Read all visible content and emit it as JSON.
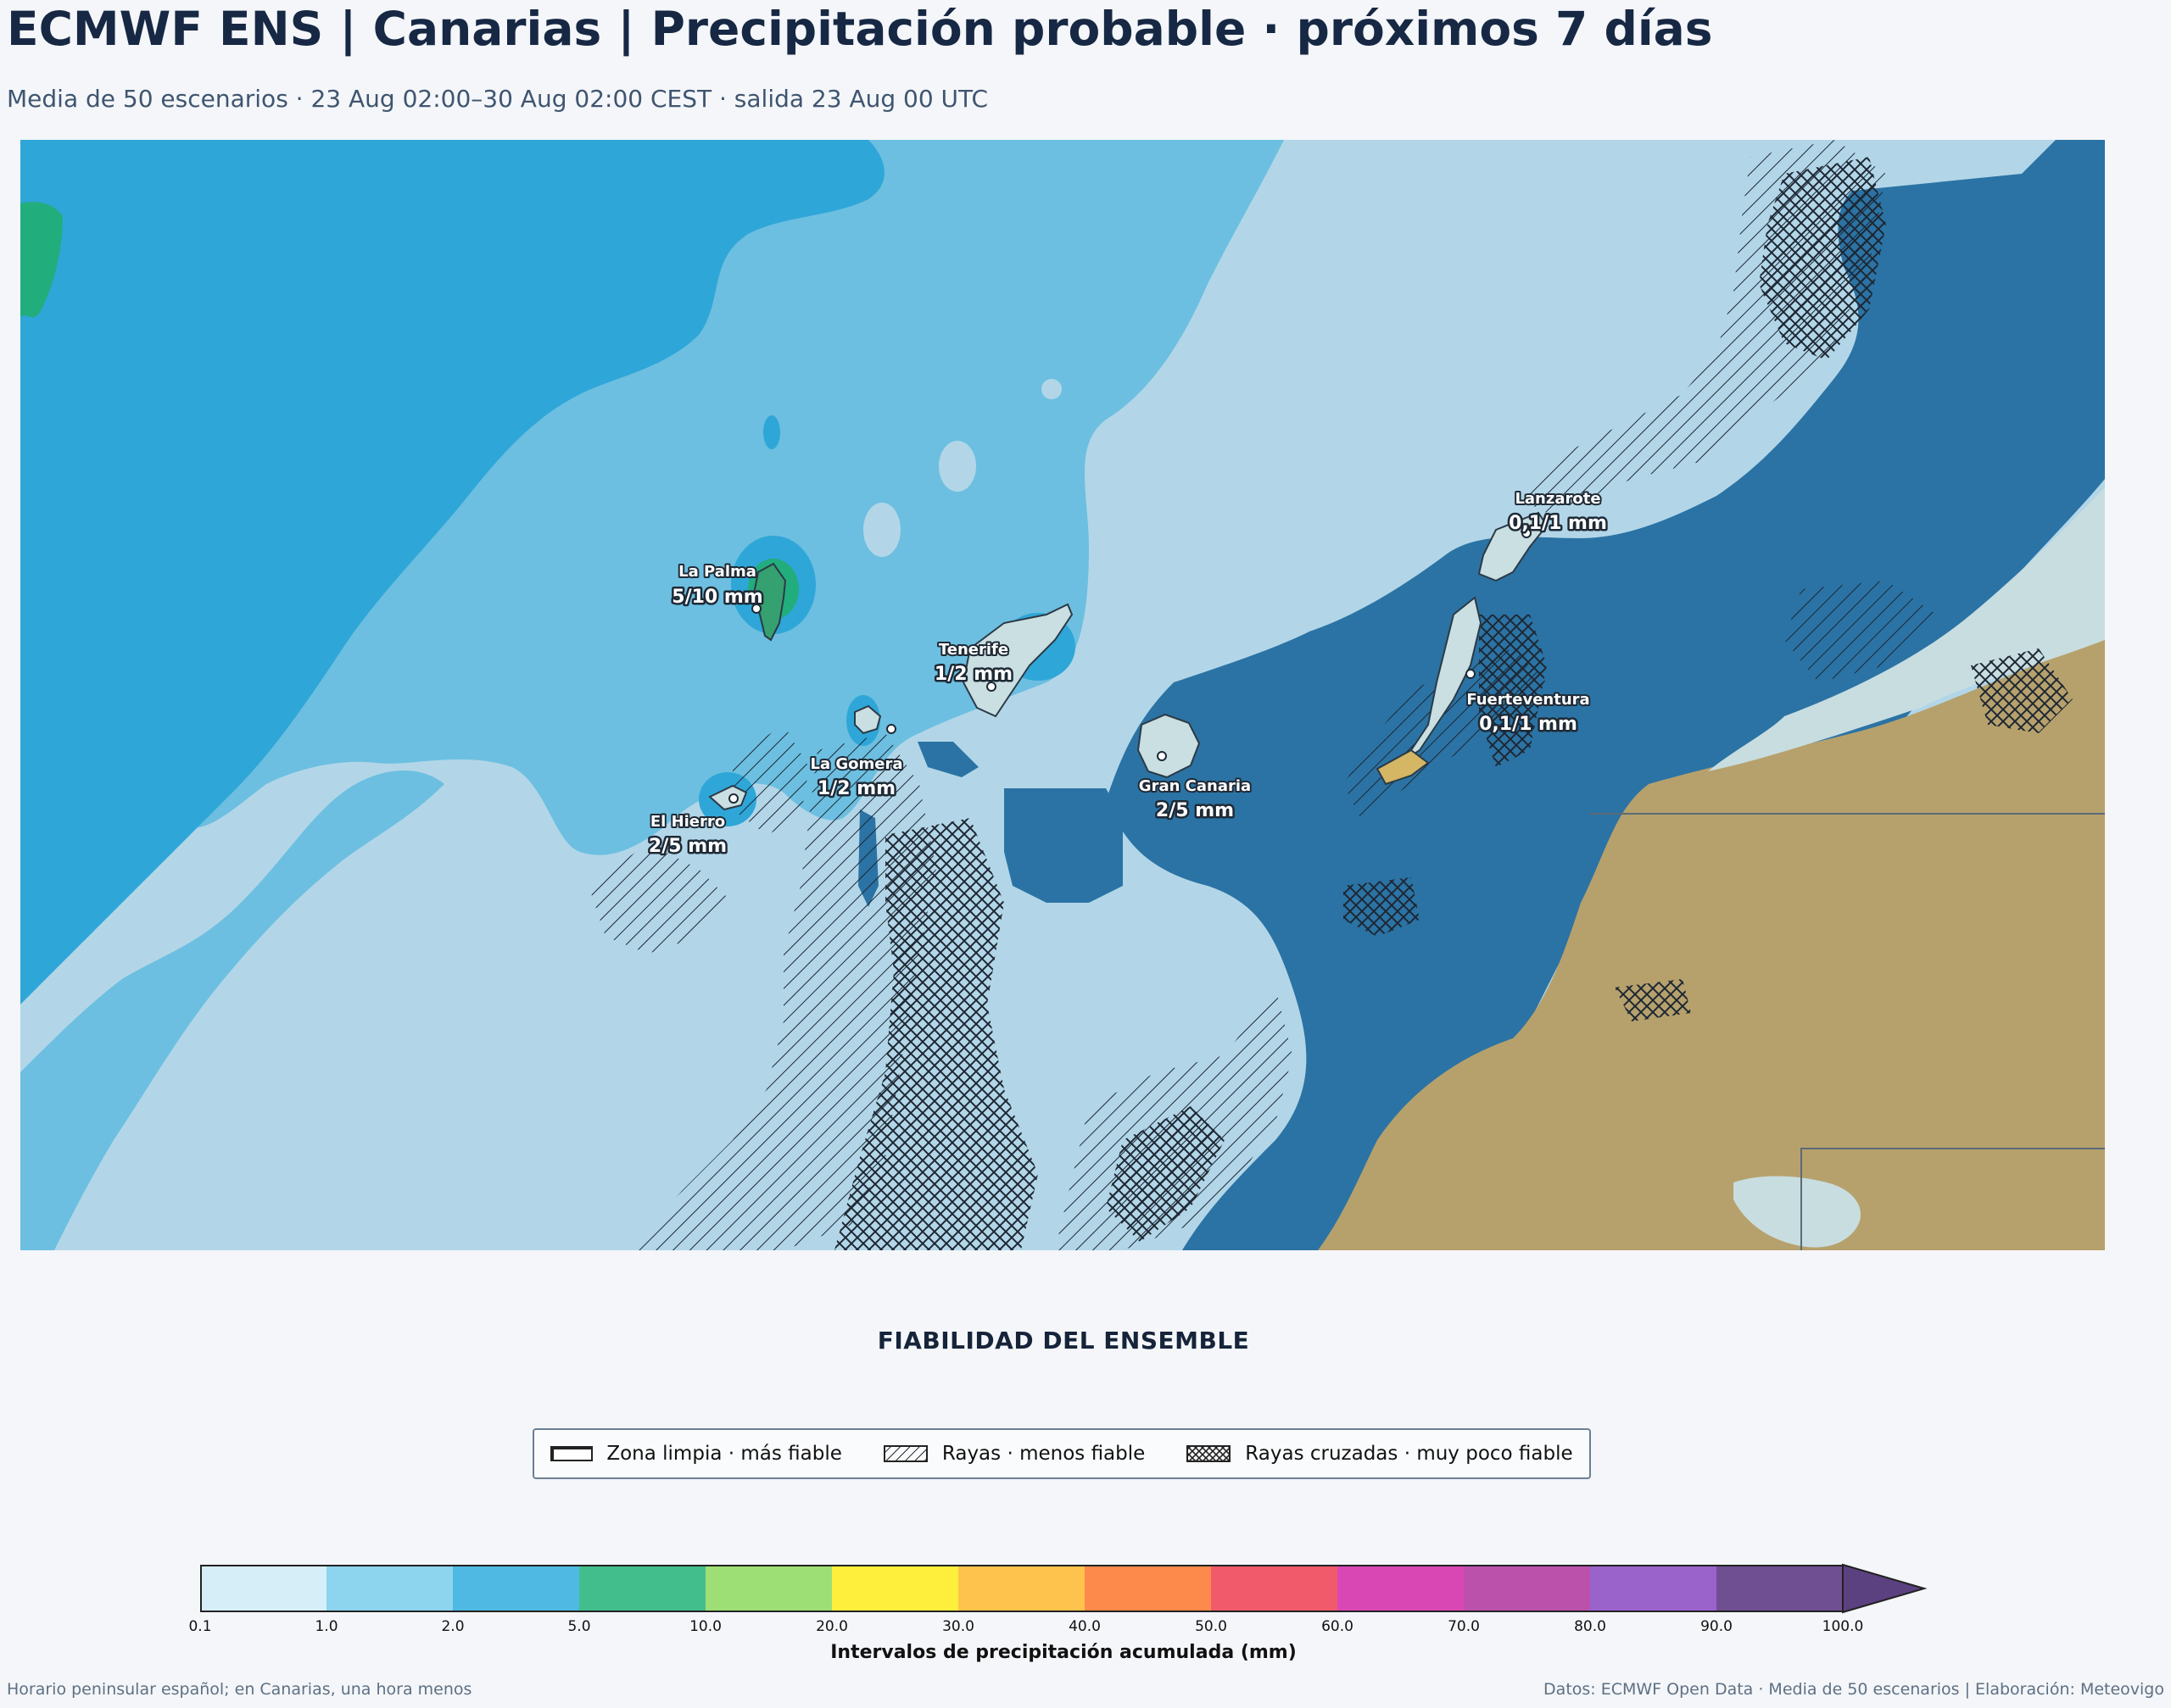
{
  "header": {
    "title": "ECMWF ENS | Canarias | Precipitación probable · próximos 7 días",
    "subtitle": "Media de 50 escenarios · 23 Aug 02:00–30 Aug 02:00 CEST · salida 23 Aug 00 UTC"
  },
  "map": {
    "islands": [
      {
        "name": "La Palma",
        "value": "5/10 mm"
      },
      {
        "name": "Tenerife",
        "value": "1/2 mm"
      },
      {
        "name": "La Gomera",
        "value": "1/2 mm"
      },
      {
        "name": "El Hierro",
        "value": "2/5 mm"
      },
      {
        "name": "Gran Canaria",
        "value": "2/5 mm"
      },
      {
        "name": "Lanzarote",
        "value": "0,1/1 mm"
      },
      {
        "name": "Fuerteventura",
        "value": "0,1/1 mm"
      }
    ],
    "colors": {
      "class_0_1_1": "#b2d6e8",
      "class_1_2": "#6cbfe0",
      "class_2_5": "#2fa6d8",
      "class_5_10": "#22ad7d",
      "deep_sea": "#2b73a4",
      "land": "#b6a16c"
    }
  },
  "reliability": {
    "title": "FIABILIDAD DEL ENSEMBLE",
    "items": [
      {
        "label": "Zona limpia · más fiable",
        "pattern": "none"
      },
      {
        "label": "Rayas · menos fiable",
        "pattern": "hatch"
      },
      {
        "label": "Rayas cruzadas · muy poco fiable",
        "pattern": "crosshatch"
      }
    ]
  },
  "colorbar": {
    "label": "Intervalos de precipitación acumulada (mm)",
    "ticks": [
      "0.1",
      "1.0",
      "2.0",
      "5.0",
      "10.0",
      "20.0",
      "30.0",
      "40.0",
      "50.0",
      "60.0",
      "70.0",
      "80.0",
      "90.0",
      "100.0"
    ],
    "colors": [
      "#d6eef7",
      "#8dd4ee",
      "#4fb9e3",
      "#42be8c",
      "#9ddf75",
      "#fdef3c",
      "#fdc34d",
      "#fd8a4a",
      "#f05a6b",
      "#d947b5",
      "#bb51ab",
      "#9a63cc",
      "#6f4f92"
    ],
    "extend_color": "#5c4180"
  },
  "footer": {
    "left": "Horario peninsular español; en Canarias, una hora menos",
    "right": "Datos: ECMWF Open Data · Media de 50 escenarios | Elaboración: Meteovigo"
  }
}
